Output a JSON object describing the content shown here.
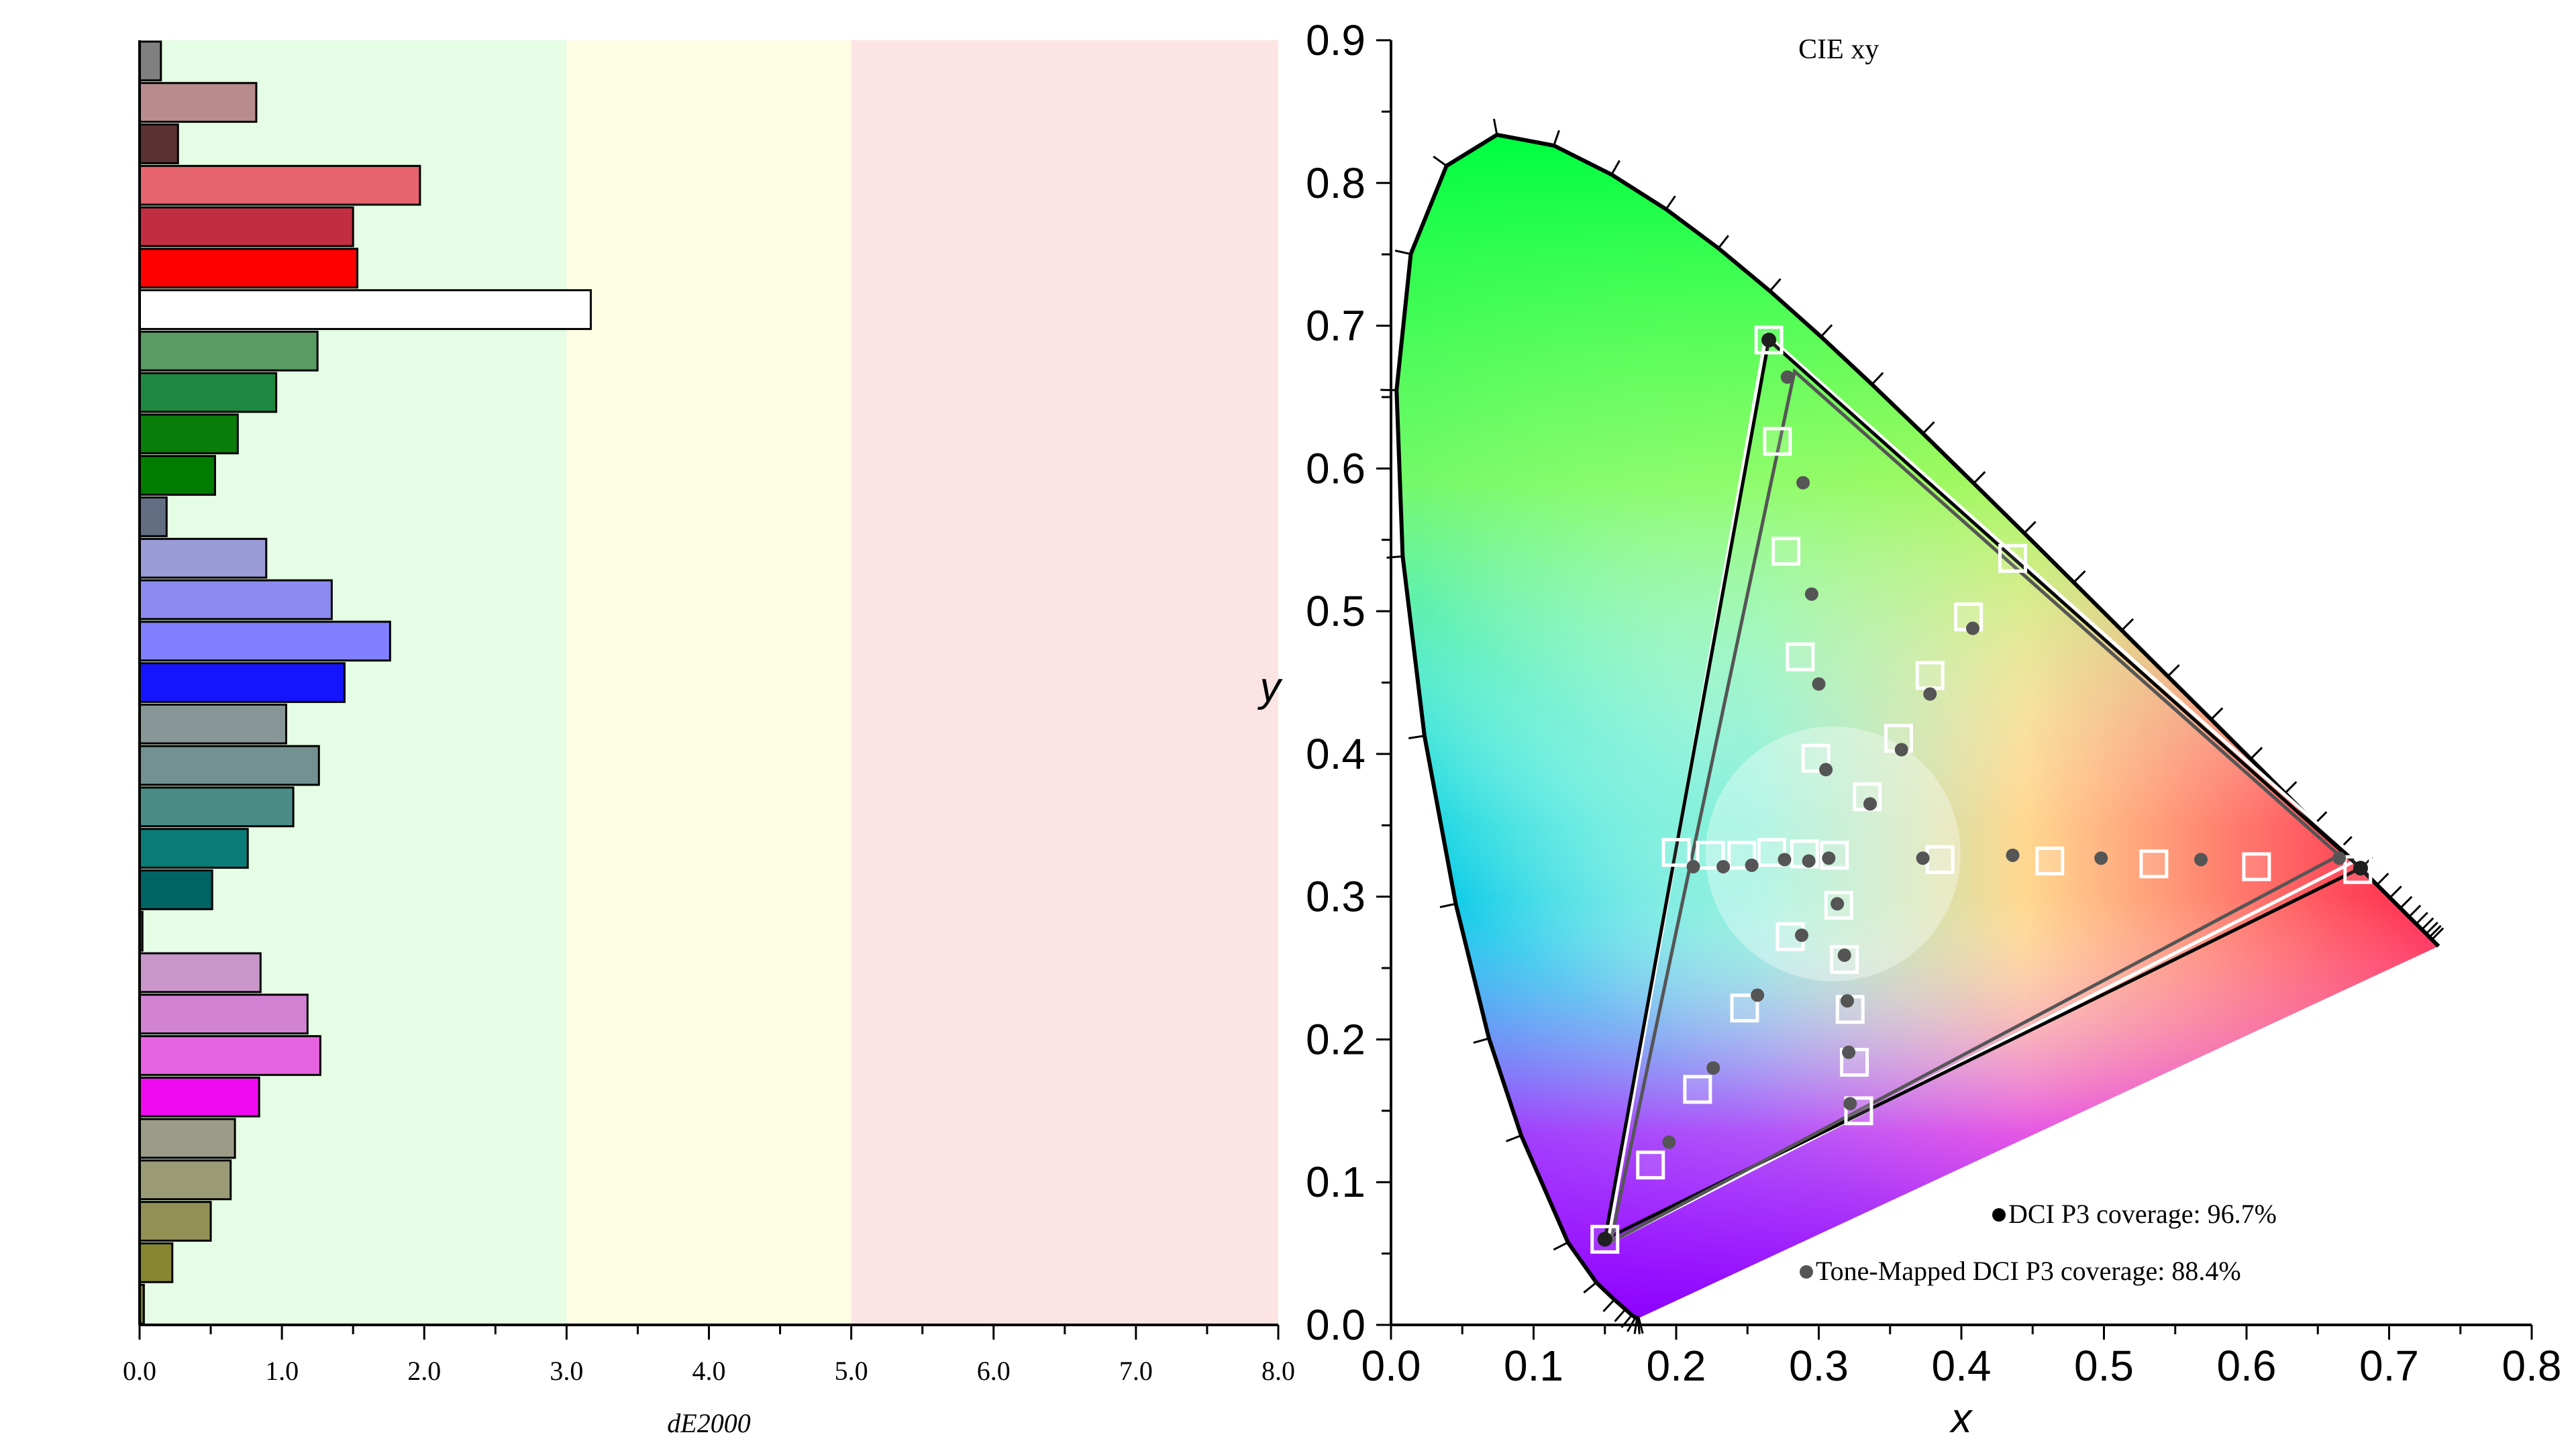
{
  "chart_data": [
    {
      "type": "bar",
      "orientation": "horizontal",
      "xlabel": "dE2000",
      "xlim": [
        0,
        8
      ],
      "x_ticks": [
        "0.0",
        "1.0",
        "2.0",
        "3.0",
        "4.0",
        "5.0",
        "6.0",
        "7.0",
        "8.0"
      ],
      "bands": [
        {
          "from": 0,
          "to": 3,
          "color": "#e5fde4"
        },
        {
          "from": 3,
          "to": 5,
          "color": "#fdfde4"
        },
        {
          "from": 5,
          "to": 8,
          "color": "#fde4e4"
        }
      ],
      "bars": [
        {
          "value": 0.15,
          "color": "#808080"
        },
        {
          "value": 0.82,
          "color": "#b88c8c"
        },
        {
          "value": 0.27,
          "color": "#5a3232"
        },
        {
          "value": 1.97,
          "color": "#e6646e"
        },
        {
          "value": 1.5,
          "color": "#c32d41"
        },
        {
          "value": 1.53,
          "color": "#ff0000"
        },
        {
          "value": 3.17,
          "color": "#ffffff"
        },
        {
          "value": 1.25,
          "color": "#5a9b64"
        },
        {
          "value": 0.96,
          "color": "#1e8741"
        },
        {
          "value": 0.69,
          "color": "#0a7d0a"
        },
        {
          "value": 0.53,
          "color": "#007d00"
        },
        {
          "value": 0.19,
          "color": "#646e82"
        },
        {
          "value": 0.89,
          "color": "#9b9bd7"
        },
        {
          "value": 1.35,
          "color": "#8c8cf0"
        },
        {
          "value": 1.76,
          "color": "#8080ff"
        },
        {
          "value": 1.44,
          "color": "#1414ff"
        },
        {
          "value": 1.03,
          "color": "#879696"
        },
        {
          "value": 1.26,
          "color": "#739191"
        },
        {
          "value": 1.08,
          "color": "#4b8c87"
        },
        {
          "value": 0.76,
          "color": "#0a7d78"
        },
        {
          "value": 0.51,
          "color": "#006464"
        },
        {
          "value": 0.02,
          "color": "#505050"
        },
        {
          "value": 0.85,
          "color": "#c896c8"
        },
        {
          "value": 1.18,
          "color": "#d282d2"
        },
        {
          "value": 1.27,
          "color": "#e664e1"
        },
        {
          "value": 0.84,
          "color": "#f00af0"
        },
        {
          "value": 0.67,
          "color": "#9b9b87"
        },
        {
          "value": 0.64,
          "color": "#9b9b78"
        },
        {
          "value": 0.5,
          "color": "#919155"
        },
        {
          "value": 0.23,
          "color": "#878732"
        },
        {
          "value": 0.03,
          "color": "#787828"
        }
      ]
    },
    {
      "type": "scatter",
      "title": "CIE xy",
      "xlabel": "x",
      "ylabel": "y",
      "xlim": [
        0,
        0.8
      ],
      "ylim": [
        0,
        0.9
      ],
      "x_ticks": [
        "0.0",
        "0.1",
        "0.2",
        "0.3",
        "0.4",
        "0.5",
        "0.6",
        "0.7",
        "0.8"
      ],
      "y_ticks": [
        "0.0",
        "0.1",
        "0.2",
        "0.3",
        "0.4",
        "0.5",
        "0.6",
        "0.7",
        "0.8",
        "0.9"
      ],
      "spectral_locus": [
        [
          0.1741,
          0.005
        ],
        [
          0.1738,
          0.0049
        ],
        [
          0.1733,
          0.0048
        ],
        [
          0.1726,
          0.0048
        ],
        [
          0.1714,
          0.0051
        ],
        [
          0.1689,
          0.0069
        ],
        [
          0.1644,
          0.0109
        ],
        [
          0.1566,
          0.0177
        ],
        [
          0.144,
          0.0297
        ],
        [
          0.1241,
          0.0578
        ],
        [
          0.0913,
          0.1327
        ],
        [
          0.0687,
          0.2007
        ],
        [
          0.0454,
          0.295
        ],
        [
          0.0235,
          0.4127
        ],
        [
          0.0082,
          0.5384
        ],
        [
          0.0039,
          0.6548
        ],
        [
          0.0139,
          0.7502
        ],
        [
          0.0389,
          0.812
        ],
        [
          0.0743,
          0.8338
        ],
        [
          0.1142,
          0.8262
        ],
        [
          0.1547,
          0.8059
        ],
        [
          0.1929,
          0.7816
        ],
        [
          0.2296,
          0.7543
        ],
        [
          0.2658,
          0.7243
        ],
        [
          0.3016,
          0.6923
        ],
        [
          0.3373,
          0.6589
        ],
        [
          0.3731,
          0.6245
        ],
        [
          0.4087,
          0.5896
        ],
        [
          0.4441,
          0.5547
        ],
        [
          0.4788,
          0.5202
        ],
        [
          0.5125,
          0.4866
        ],
        [
          0.5448,
          0.4544
        ],
        [
          0.5752,
          0.4242
        ],
        [
          0.6029,
          0.3965
        ],
        [
          0.627,
          0.3725
        ],
        [
          0.6482,
          0.3514
        ],
        [
          0.6658,
          0.334
        ],
        [
          0.6801,
          0.3197
        ],
        [
          0.6915,
          0.3083
        ],
        [
          0.7006,
          0.2993
        ],
        [
          0.7079,
          0.292
        ],
        [
          0.714,
          0.2859
        ],
        [
          0.719,
          0.2809
        ],
        [
          0.723,
          0.277
        ],
        [
          0.726,
          0.274
        ],
        [
          0.7283,
          0.2717
        ],
        [
          0.73,
          0.27
        ],
        [
          0.7347,
          0.2653
        ]
      ],
      "series": [
        {
          "name": "DCI P3 coverage: 96.7%",
          "color": "#000000",
          "triangle": [
            [
              0.68,
              0.32
            ],
            [
              0.265,
              0.69
            ],
            [
              0.15,
              0.06
            ]
          ]
        },
        {
          "name": "Tone-Mapped DCI P3 coverage: 88.4%",
          "color": "#555555",
          "triangle": [
            [
              0.665,
              0.329
            ],
            [
              0.283,
              0.668
            ],
            [
              0.154,
              0.058
            ]
          ]
        }
      ],
      "extra_triangles": [
        {
          "color": "#ffffff",
          "points": [
            [
              0.678,
              0.326
            ],
            [
              0.263,
              0.694
            ],
            [
              0.152,
              0.057
            ]
          ]
        }
      ],
      "target_squares": [
        [
          0.265,
          0.69
        ],
        [
          0.271,
          0.619
        ],
        [
          0.277,
          0.542
        ],
        [
          0.287,
          0.468
        ],
        [
          0.298,
          0.397
        ],
        [
          0.15,
          0.06
        ],
        [
          0.182,
          0.112
        ],
        [
          0.215,
          0.165
        ],
        [
          0.248,
          0.222
        ],
        [
          0.28,
          0.272
        ],
        [
          0.678,
          0.319
        ],
        [
          0.607,
          0.321
        ],
        [
          0.535,
          0.323
        ],
        [
          0.462,
          0.325
        ],
        [
          0.385,
          0.326
        ],
        [
          0.328,
          0.15
        ],
        [
          0.325,
          0.184
        ],
        [
          0.322,
          0.221
        ],
        [
          0.318,
          0.256
        ],
        [
          0.314,
          0.294
        ],
        [
          0.311,
          0.329
        ],
        [
          0.436,
          0.537
        ],
        [
          0.405,
          0.496
        ],
        [
          0.378,
          0.455
        ],
        [
          0.356,
          0.411
        ],
        [
          0.334,
          0.37
        ],
        [
          0.2,
          0.331
        ],
        [
          0.224,
          0.329
        ],
        [
          0.246,
          0.329
        ],
        [
          0.267,
          0.331
        ],
        [
          0.29,
          0.33
        ]
      ],
      "measured_points": [
        [
          0.278,
          0.664
        ],
        [
          0.289,
          0.59
        ],
        [
          0.295,
          0.512
        ],
        [
          0.3,
          0.449
        ],
        [
          0.305,
          0.389
        ],
        [
          0.195,
          0.128
        ],
        [
          0.226,
          0.18
        ],
        [
          0.257,
          0.231
        ],
        [
          0.288,
          0.273
        ],
        [
          0.665,
          0.327
        ],
        [
          0.568,
          0.326
        ],
        [
          0.498,
          0.327
        ],
        [
          0.436,
          0.329
        ],
        [
          0.373,
          0.327
        ],
        [
          0.322,
          0.155
        ],
        [
          0.321,
          0.191
        ],
        [
          0.32,
          0.227
        ],
        [
          0.318,
          0.259
        ],
        [
          0.313,
          0.295
        ],
        [
          0.408,
          0.488
        ],
        [
          0.378,
          0.442
        ],
        [
          0.358,
          0.403
        ],
        [
          0.336,
          0.365
        ],
        [
          0.212,
          0.321
        ],
        [
          0.233,
          0.321
        ],
        [
          0.253,
          0.322
        ],
        [
          0.276,
          0.326
        ],
        [
          0.293,
          0.325
        ],
        [
          0.307,
          0.327
        ]
      ]
    }
  ]
}
